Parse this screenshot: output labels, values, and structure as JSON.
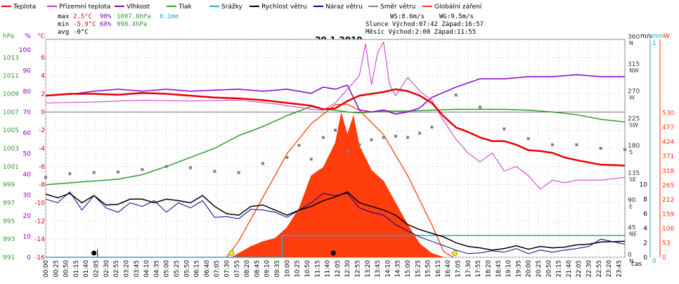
{
  "chart_data": {
    "type": "line",
    "title": "29.1.2019",
    "legend": [
      {
        "id": "teplota",
        "label": "Teplota",
        "color": "#e60000"
      },
      {
        "id": "prizemni",
        "label": "Přízemní teplota",
        "color": "#cc33cc"
      },
      {
        "id": "vlhkost",
        "label": "Vlhkost",
        "color": "#8800cc"
      },
      {
        "id": "tlak",
        "label": "Tlak",
        "color": "#339933"
      },
      {
        "id": "srazky",
        "label": "Srážky",
        "color": "#22aacc"
      },
      {
        "id": "rychlost",
        "label": "Rychlost větru",
        "color": "#000000"
      },
      {
        "id": "naraz",
        "label": "Náraz větru",
        "color": "#000099"
      },
      {
        "id": "smer",
        "label": "Směr větru",
        "color": "#808080"
      },
      {
        "id": "zareni",
        "label": "Globální záření",
        "color": "#ff3300"
      }
    ],
    "stats": {
      "max": {
        "label": "max",
        "temp": "2.5°C",
        "hum": "90%",
        "press": "1007.6hPa",
        "rain": "0.1mm"
      },
      "min": {
        "label": "min",
        "temp": "-5.9°C",
        "hum": "68%",
        "press": "998.4hPa"
      },
      "avg": {
        "label": "avg",
        "temp": "-0°C"
      }
    },
    "info": {
      "ws": "WS:8.6m/s",
      "wg": "WG:9.5m/s",
      "sun": "Slunce Východ:07:42  Západ:16:57",
      "moon": "Měsíc  Východ:2:00  Západ:11:55"
    },
    "x_unit": "čas",
    "x_ticks": [
      "00:00",
      "00:25",
      "00:50",
      "01:15",
      "01:40",
      "02:05",
      "02:30",
      "02:55",
      "03:20",
      "03:45",
      "04:10",
      "04:35",
      "05:00",
      "05:25",
      "05:50",
      "06:15",
      "06:40",
      "07:05",
      "07:30",
      "07:55",
      "08:20",
      "08:45",
      "09:10",
      "09:35",
      "10:00",
      "10:25",
      "10:50",
      "11:15",
      "11:40",
      "12:05",
      "12:30",
      "12:55",
      "13:20",
      "13:45",
      "14:10",
      "14:35",
      "15:00",
      "15:25",
      "15:50",
      "16:15",
      "16:40",
      "17:05",
      "17:30",
      "17:55",
      "18:20",
      "18:45",
      "19:10",
      "19:35",
      "20:00",
      "20:25",
      "20:50",
      "21:15",
      "21:40",
      "22:05",
      "22:30",
      "22:55",
      "23:20",
      "23:45"
    ],
    "axes": {
      "hpa": {
        "unit": "hPa",
        "color": "#339933",
        "ticks": [
          "991",
          "993",
          "995",
          "997",
          "999",
          "1001",
          "1003",
          "1005",
          "1007",
          "1009",
          "1011",
          "1013"
        ],
        "range": [
          991,
          1015
        ]
      },
      "pct": {
        "unit": "%",
        "color": "#8800cc",
        "ticks": [
          "0",
          "10",
          "20",
          "30",
          "40",
          "50",
          "60",
          "70",
          "80",
          "90",
          "100"
        ],
        "range": [
          0,
          105
        ]
      },
      "degc": {
        "unit": "°C",
        "color": "#e60000",
        "ticks": [
          "-16",
          "-14",
          "-12",
          "-10",
          "-8",
          "-6",
          "-4",
          "-2",
          "0",
          "2",
          "4",
          "6"
        ],
        "range": [
          -16,
          8
        ]
      },
      "ms": {
        "unit": "m/s",
        "color": "#000099",
        "ticks": [
          "0",
          "2",
          "4",
          "6",
          "8",
          "10"
        ],
        "range": [
          0,
          30
        ]
      },
      "dir": {
        "ticks": [
          "0",
          "45",
          "90",
          "135",
          "180",
          "225",
          "270",
          "315",
          "360"
        ],
        "labels": [
          "N",
          "NE",
          "E",
          "SE",
          "S",
          "SW",
          "W",
          "NW",
          "N"
        ],
        "range": [
          0,
          360
        ]
      },
      "mm": {
        "unit": "mm",
        "color": "#22aacc",
        "ticks": [
          "0",
          "1"
        ],
        "range": [
          0,
          1
        ]
      },
      "wm2": {
        "unit": "W",
        "color": "#ff3300",
        "ticks": [
          "0",
          "53",
          "106",
          "159",
          "212",
          "265",
          "318",
          "371",
          "424",
          "477",
          "530"
        ],
        "range": [
          0,
          800
        ]
      }
    },
    "series": {
      "temperature": [
        [
          0,
          1.8
        ],
        [
          1,
          2
        ],
        [
          2,
          2
        ],
        [
          3,
          1.9
        ],
        [
          4,
          2.1
        ],
        [
          5,
          2
        ],
        [
          6,
          1.8
        ],
        [
          7,
          1.6
        ],
        [
          8,
          1.5
        ],
        [
          9,
          1.3
        ],
        [
          10,
          1
        ],
        [
          11,
          0.7
        ],
        [
          11.5,
          0.3
        ],
        [
          12,
          0.4
        ],
        [
          12.5,
          1.2
        ],
        [
          13,
          1.8
        ],
        [
          14,
          2.2
        ],
        [
          14.5,
          2.5
        ],
        [
          15,
          2.3
        ],
        [
          15.5,
          1.8
        ],
        [
          16,
          1
        ],
        [
          16.5,
          -0.5
        ],
        [
          17,
          -1.7
        ],
        [
          17.5,
          -2.2
        ],
        [
          18,
          -2.8
        ],
        [
          18.5,
          -3.2
        ],
        [
          19,
          -3.2
        ],
        [
          19.5,
          -3.6
        ],
        [
          20,
          -4.2
        ],
        [
          20.5,
          -4.3
        ],
        [
          21,
          -4.5
        ],
        [
          21.5,
          -5
        ],
        [
          22,
          -5.3
        ],
        [
          23,
          -5.8
        ],
        [
          24,
          -5.9
        ]
      ],
      "ground_temp": [
        [
          0,
          1
        ],
        [
          2,
          1.1
        ],
        [
          4,
          1.3
        ],
        [
          6,
          1.2
        ],
        [
          8,
          1.3
        ],
        [
          9.5,
          0.9
        ],
        [
          11,
          0.3
        ],
        [
          11.5,
          0.2
        ],
        [
          12,
          1
        ],
        [
          12.5,
          2.5
        ],
        [
          13,
          4
        ],
        [
          13.25,
          7.5
        ],
        [
          13.5,
          3
        ],
        [
          13.75,
          6.5
        ],
        [
          14,
          7.7
        ],
        [
          14.25,
          3
        ],
        [
          14.5,
          1.8
        ],
        [
          15,
          3.8
        ],
        [
          15.5,
          2.3
        ],
        [
          16,
          1.3
        ],
        [
          16.5,
          -1
        ],
        [
          17,
          -3
        ],
        [
          17.5,
          -4.5
        ],
        [
          18,
          -5.5
        ],
        [
          18.5,
          -4.5
        ],
        [
          19,
          -6.5
        ],
        [
          19.5,
          -6
        ],
        [
          20,
          -7
        ],
        [
          20.5,
          -8.5
        ],
        [
          21,
          -7.5
        ],
        [
          21.5,
          -7.8
        ],
        [
          22,
          -7.5
        ],
        [
          23,
          -7.5
        ],
        [
          24,
          -7.2
        ]
      ],
      "humidity": [
        [
          0,
          78
        ],
        [
          1,
          78.5
        ],
        [
          2,
          80
        ],
        [
          3,
          81
        ],
        [
          4,
          80
        ],
        [
          5,
          81
        ],
        [
          6,
          80
        ],
        [
          7,
          80.5
        ],
        [
          8,
          81
        ],
        [
          9,
          80
        ],
        [
          10,
          81
        ],
        [
          11,
          79
        ],
        [
          11.5,
          82
        ],
        [
          12,
          81
        ],
        [
          12.5,
          83
        ],
        [
          13,
          71
        ],
        [
          13.5,
          70
        ],
        [
          14,
          71
        ],
        [
          14.5,
          69
        ],
        [
          15,
          70
        ],
        [
          15.5,
          72
        ],
        [
          16,
          77
        ],
        [
          17,
          82
        ],
        [
          17.5,
          84
        ],
        [
          18,
          86
        ],
        [
          19,
          86
        ],
        [
          20,
          87
        ],
        [
          21,
          87
        ],
        [
          22,
          88
        ],
        [
          23,
          87
        ],
        [
          24,
          87
        ]
      ],
      "pressure": [
        [
          0,
          999
        ],
        [
          1,
          999.2
        ],
        [
          2,
          999.4
        ],
        [
          3,
          999.6
        ],
        [
          4,
          1000.1
        ],
        [
          5,
          1001
        ],
        [
          6,
          1002
        ],
        [
          7,
          1003
        ],
        [
          8,
          1004.4
        ],
        [
          9,
          1005.4
        ],
        [
          9.5,
          1006
        ],
        [
          10,
          1006.6
        ],
        [
          10.5,
          1007.1
        ],
        [
          11,
          1007.6
        ],
        [
          11.5,
          1007.3
        ],
        [
          12,
          1007.2
        ],
        [
          12.5,
          1007
        ],
        [
          13,
          1006.9
        ],
        [
          14,
          1007.1
        ],
        [
          15,
          1007.1
        ],
        [
          16,
          1007.2
        ],
        [
          17,
          1007.3
        ],
        [
          18,
          1007.3
        ],
        [
          19,
          1007.3
        ],
        [
          20,
          1007.2
        ],
        [
          21,
          1007
        ],
        [
          22,
          1006.7
        ],
        [
          23,
          1006.2
        ],
        [
          24,
          1005.9
        ]
      ],
      "wind_speed": [
        [
          0,
          8.7
        ],
        [
          0.5,
          8.2
        ],
        [
          1,
          8.8
        ],
        [
          1.5,
          7.5
        ],
        [
          2,
          8.5
        ],
        [
          2.5,
          7.2
        ],
        [
          3,
          7.3
        ],
        [
          3.5,
          8
        ],
        [
          4,
          8
        ],
        [
          4.5,
          7.5
        ],
        [
          5,
          8
        ],
        [
          5.5,
          7.8
        ],
        [
          6,
          7.5
        ],
        [
          6.5,
          8.5
        ],
        [
          7,
          7
        ],
        [
          7.5,
          6
        ],
        [
          8,
          5.8
        ],
        [
          8.5,
          7
        ],
        [
          9,
          7.2
        ],
        [
          9.5,
          6.5
        ],
        [
          10,
          5.8
        ],
        [
          10.5,
          6.5
        ],
        [
          11,
          7
        ],
        [
          11.5,
          7.8
        ],
        [
          12,
          8.3
        ],
        [
          12.5,
          9
        ],
        [
          13,
          7.5
        ],
        [
          13.5,
          7
        ],
        [
          14,
          6.5
        ],
        [
          14.5,
          5.8
        ],
        [
          15,
          4.5
        ],
        [
          15.5,
          3.8
        ],
        [
          16,
          3.3
        ],
        [
          16.5,
          2.8
        ],
        [
          17,
          2
        ],
        [
          17.5,
          1.5
        ],
        [
          18,
          1.3
        ],
        [
          18.5,
          1
        ],
        [
          19,
          1.2
        ],
        [
          19.5,
          1.6
        ],
        [
          20,
          1.1
        ],
        [
          20.5,
          1.5
        ],
        [
          21,
          1.3
        ],
        [
          21.5,
          1.4
        ],
        [
          22,
          1.7
        ],
        [
          22.5,
          1.8
        ],
        [
          23,
          2.1
        ],
        [
          24,
          2.2
        ]
      ],
      "wind_gust": [
        [
          0,
          8
        ],
        [
          0.5,
          7.5
        ],
        [
          1,
          9
        ],
        [
          1.5,
          6.5
        ],
        [
          2,
          8.5
        ],
        [
          2.5,
          6.8
        ],
        [
          3,
          6.2
        ],
        [
          3.5,
          7.5
        ],
        [
          4,
          7
        ],
        [
          4.5,
          7.8
        ],
        [
          5,
          6.2
        ],
        [
          5.5,
          7.5
        ],
        [
          6,
          6.8
        ],
        [
          6.5,
          7.8
        ],
        [
          7,
          5.5
        ],
        [
          7.5,
          5.6
        ],
        [
          8,
          5.3
        ],
        [
          8.5,
          6.6
        ],
        [
          9,
          6.5
        ],
        [
          9.5,
          6.2
        ],
        [
          10,
          5.5
        ],
        [
          10.5,
          6.5
        ],
        [
          11,
          7.5
        ],
        [
          11.5,
          8.8
        ],
        [
          12,
          8.5
        ],
        [
          12.5,
          8.8
        ],
        [
          13,
          6.8
        ],
        [
          13.5,
          6.2
        ],
        [
          14,
          5.8
        ],
        [
          14.5,
          4.5
        ],
        [
          15,
          3.6
        ],
        [
          15.5,
          2.8
        ],
        [
          16,
          2.2
        ],
        [
          16.5,
          1.6
        ],
        [
          17,
          1
        ],
        [
          17.5,
          0.5
        ],
        [
          18,
          0.6
        ],
        [
          18.5,
          0.9
        ],
        [
          19,
          0.7
        ],
        [
          19.5,
          1.2
        ],
        [
          20,
          0.5
        ],
        [
          20.5,
          1
        ],
        [
          21,
          0.7
        ],
        [
          21.5,
          1
        ],
        [
          22,
          1.2
        ],
        [
          22.5,
          1.5
        ],
        [
          23,
          2.5
        ],
        [
          24,
          1.8
        ]
      ],
      "wind_dir": [
        [
          0,
          132
        ],
        [
          1,
          138
        ],
        [
          2,
          140
        ],
        [
          3,
          141
        ],
        [
          4,
          145
        ],
        [
          5,
          150
        ],
        [
          6,
          148
        ],
        [
          7,
          142
        ],
        [
          8,
          140
        ],
        [
          9,
          155
        ],
        [
          10,
          165
        ],
        [
          10.5,
          185
        ],
        [
          11,
          162
        ],
        [
          11.5,
          198
        ],
        [
          12,
          210
        ],
        [
          12.5,
          175
        ],
        [
          13,
          186
        ],
        [
          13.5,
          194
        ],
        [
          14,
          198
        ],
        [
          14.5,
          200
        ],
        [
          15,
          198
        ],
        [
          15.5,
          205
        ],
        [
          16,
          215
        ],
        [
          17,
          268
        ],
        [
          18,
          248
        ],
        [
          19,
          212
        ],
        [
          20,
          196
        ],
        [
          21,
          186
        ],
        [
          22,
          186
        ],
        [
          23,
          180
        ],
        [
          24,
          178
        ]
      ],
      "radiation": [
        [
          7.7,
          0
        ],
        [
          8,
          15
        ],
        [
          8.5,
          40
        ],
        [
          9,
          58
        ],
        [
          9.5,
          70
        ],
        [
          10,
          110
        ],
        [
          10.5,
          180
        ],
        [
          11,
          300
        ],
        [
          11.5,
          330
        ],
        [
          12,
          420
        ],
        [
          12.25,
          530
        ],
        [
          12.5,
          450
        ],
        [
          12.75,
          520
        ],
        [
          13,
          410
        ],
        [
          13.5,
          320
        ],
        [
          14,
          280
        ],
        [
          14.5,
          200
        ],
        [
          15,
          120
        ],
        [
          15.5,
          50
        ],
        [
          16,
          15
        ],
        [
          16.5,
          0
        ]
      ],
      "radiation_clear": [
        [
          7.5,
          0
        ],
        [
          8,
          60
        ],
        [
          9,
          220
        ],
        [
          10,
          380
        ],
        [
          11,
          490
        ],
        [
          12,
          560
        ],
        [
          12.5,
          562
        ],
        [
          13,
          540
        ],
        [
          14,
          450
        ],
        [
          15,
          300
        ],
        [
          16,
          120
        ],
        [
          16.5,
          20
        ],
        [
          16.9,
          0
        ]
      ],
      "rain": [
        [
          0,
          0
        ],
        [
          9.8,
          0
        ],
        [
          9.8,
          0.1
        ],
        [
          24,
          0.1
        ]
      ]
    },
    "markers": {
      "sunrise": "07:42",
      "sunset": "16:57",
      "moonrise": "2:00",
      "moonset": "11:55"
    }
  }
}
